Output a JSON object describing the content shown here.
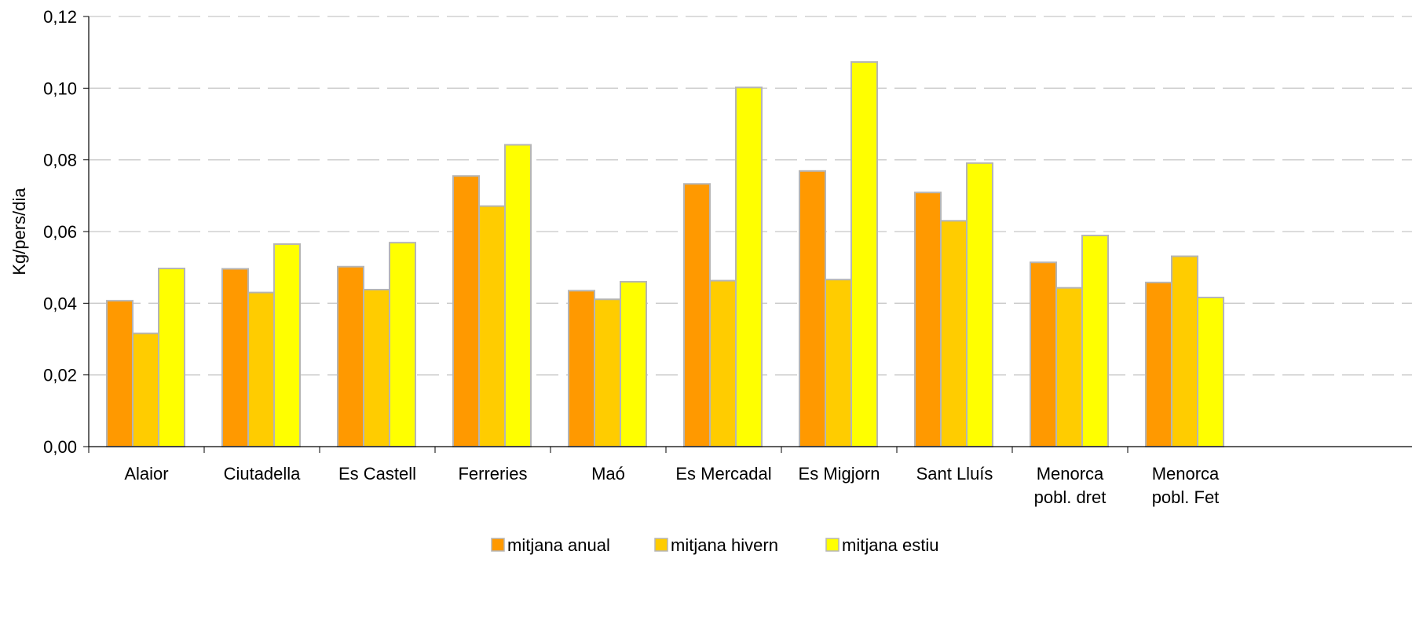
{
  "chart_data": {
    "type": "bar",
    "ylabel": "Kg/pers/dia",
    "xlabel": "",
    "ylim": [
      0,
      0.12
    ],
    "yticks": [
      "0,00",
      "0,02",
      "0,04",
      "0,06",
      "0,08",
      "0,10",
      "0,12"
    ],
    "grid": "horizontal dashed",
    "legend_position": "bottom",
    "categories": [
      [
        "Alaior"
      ],
      [
        "Ciutadella"
      ],
      [
        "Es Castell"
      ],
      [
        "Ferreries"
      ],
      [
        "Maó"
      ],
      [
        "Es Mercadal"
      ],
      [
        "Es Migjorn"
      ],
      [
        "Sant Lluís"
      ],
      [
        "Menorca",
        "pobl. dret"
      ],
      [
        "Menorca",
        "pobl. Fet"
      ]
    ],
    "series": [
      {
        "name": "mitjana anual",
        "color": "#FF9900",
        "values": [
          0.0407,
          0.0496,
          0.0502,
          0.0755,
          0.0435,
          0.0733,
          0.0769,
          0.0709,
          0.0514,
          0.0458
        ]
      },
      {
        "name": "mitjana hivern",
        "color": "#FFCC00",
        "values": [
          0.0316,
          0.043,
          0.0438,
          0.0671,
          0.0411,
          0.0463,
          0.0466,
          0.063,
          0.0443,
          0.0531
        ]
      },
      {
        "name": "mitjana estiu",
        "color": "#FFFF00",
        "values": [
          0.0497,
          0.0565,
          0.0569,
          0.0842,
          0.046,
          0.1002,
          0.1073,
          0.0791,
          0.0589,
          0.0416
        ]
      }
    ]
  }
}
